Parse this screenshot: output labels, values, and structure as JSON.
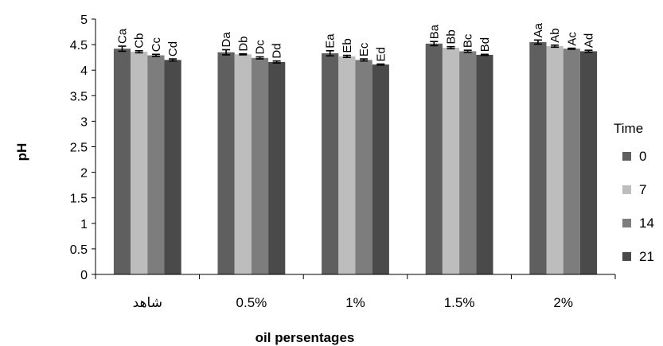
{
  "chart_data": {
    "type": "bar",
    "categories": [
      "شاهد",
      "0.5%",
      "1%",
      "1.5%",
      "2%"
    ],
    "xlabel": "oil persentages",
    "ylabel": "pH",
    "ylim": [
      0,
      5
    ],
    "yticks": [
      0,
      0.5,
      1,
      1.5,
      2,
      2.5,
      3,
      3.5,
      4,
      4.5,
      5
    ],
    "grid": false,
    "legend_title": "Time",
    "legend_position": "right",
    "series": [
      {
        "name": "0",
        "color": "#5f5f5f",
        "values": [
          4.42,
          4.35,
          4.33,
          4.52,
          4.55
        ],
        "errors": [
          0.05,
          0.05,
          0.05,
          0.04,
          0.04
        ],
        "labels": [
          "Ca",
          "Da",
          "Ea",
          "Ba",
          "Aa"
        ]
      },
      {
        "name": "7",
        "color": "#bdbdbd",
        "values": [
          4.36,
          4.31,
          4.27,
          4.44,
          4.47
        ],
        "errors": [
          0.02,
          0.01,
          0.02,
          0.02,
          0.02
        ],
        "labels": [
          "Cb",
          "Db",
          "Eb",
          "Bb",
          "Ab"
        ]
      },
      {
        "name": "14",
        "color": "#7d7d7d",
        "values": [
          4.29,
          4.24,
          4.2,
          4.37,
          4.42
        ],
        "errors": [
          0.02,
          0.02,
          0.02,
          0.02,
          0.01
        ],
        "labels": [
          "Cc",
          "Dc",
          "Ec",
          "Bc",
          "Ac"
        ]
      },
      {
        "name": "21",
        "color": "#4a4a4a",
        "values": [
          4.2,
          4.16,
          4.11,
          4.3,
          4.37
        ],
        "errors": [
          0.02,
          0.02,
          0.01,
          0.01,
          0.02
        ],
        "labels": [
          "Cd",
          "Dd",
          "Ed",
          "Bd",
          "Ad"
        ]
      }
    ]
  }
}
